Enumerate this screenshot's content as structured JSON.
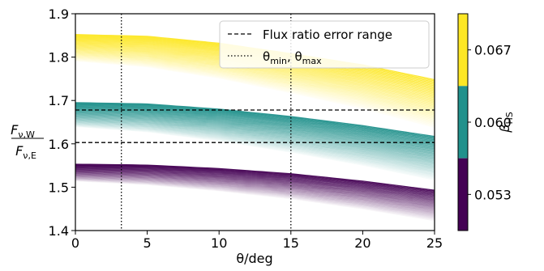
{
  "chart_data": {
    "type": "line",
    "xlabel": "θ/deg",
    "ylabel_num": "F",
    "ylabel_num_sub": "ν,W",
    "ylabel_den": "F",
    "ylabel_den_sub": "ν,E",
    "xlim": [
      0,
      25
    ],
    "ylim": [
      1.4,
      1.9
    ],
    "xticks": [
      0,
      5,
      10,
      15,
      20,
      25
    ],
    "xtick_labels": [
      "0",
      "5",
      "10",
      "15",
      "20",
      "25"
    ],
    "yticks": [
      1.4,
      1.5,
      1.6,
      1.7,
      1.8,
      1.9
    ],
    "ytick_labels": [
      "1.4",
      "1.5",
      "1.6",
      "1.7",
      "1.8",
      "1.9"
    ],
    "grid": false,
    "flux_ratio_error_range": [
      1.603,
      1.678
    ],
    "theta_limits": [
      3.2,
      15.0
    ],
    "legend": {
      "placement": "top-right",
      "entries": [
        {
          "label": "Flux ratio error range",
          "style": "dashed"
        },
        {
          "label_html": "θ<tspan font-size='11' dy='4'>min</tspan><tspan dy='-4'>, θ</tspan><tspan font-size='11' dy='4'>max</tspan>",
          "style": "dotted"
        }
      ]
    },
    "bands": [
      {
        "beta": 0.067,
        "color": "#fde725",
        "top": [
          [
            0,
            1.852
          ],
          [
            5,
            1.848
          ],
          [
            10,
            1.832
          ],
          [
            15,
            1.808
          ],
          [
            20,
            1.782
          ],
          [
            25,
            1.748
          ]
        ],
        "drop": 0.11,
        "n": 40
      },
      {
        "beta": 0.06,
        "color": "#21918c",
        "top": [
          [
            0,
            1.695
          ],
          [
            5,
            1.692
          ],
          [
            10,
            1.68
          ],
          [
            15,
            1.663
          ],
          [
            20,
            1.642
          ],
          [
            25,
            1.617
          ]
        ],
        "drop": 0.1,
        "n": 40
      },
      {
        "beta": 0.053,
        "color": "#440154",
        "top": [
          [
            0,
            1.553
          ],
          [
            5,
            1.551
          ],
          [
            10,
            1.543
          ],
          [
            15,
            1.531
          ],
          [
            20,
            1.514
          ],
          [
            25,
            1.493
          ]
        ],
        "drop": 0.07,
        "n": 30
      }
    ],
    "colorbar": {
      "label": "β",
      "label_sub": "HS",
      "ticks": [
        "0.067",
        "0.060",
        "0.053"
      ],
      "colors": [
        "#fde725",
        "#21918c",
        "#440154"
      ]
    }
  }
}
